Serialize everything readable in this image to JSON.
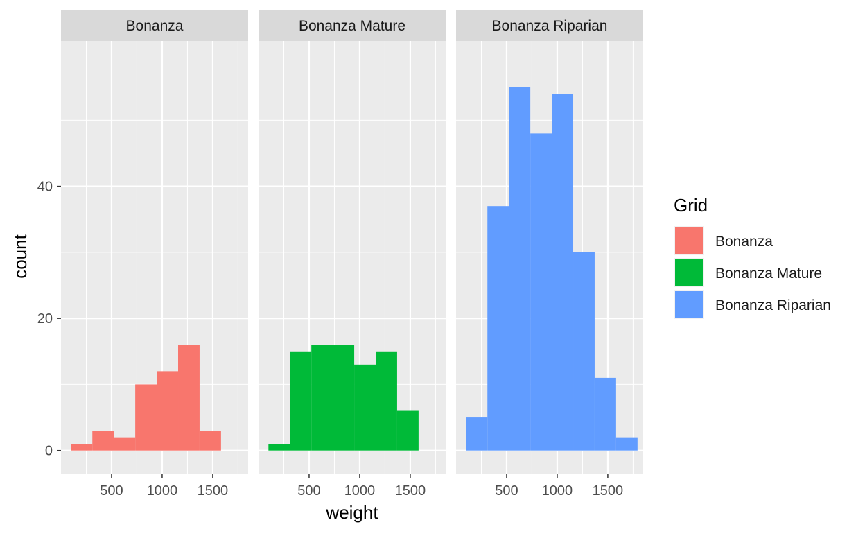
{
  "chart_data": {
    "type": "bar",
    "subtype": "faceted-histogram",
    "xlabel": "weight",
    "ylabel": "count",
    "xlim": [
      0,
      1850
    ],
    "ylim": [
      -3.6,
      62
    ],
    "x_ticks": [
      500,
      1000,
      1500
    ],
    "x_tick_labels": [
      "500",
      "1000",
      "1500"
    ],
    "y_ticks": [
      0,
      20,
      40
    ],
    "y_tick_labels": [
      "0",
      "20",
      "40"
    ],
    "bin_width": 212,
    "grid": true,
    "legend": {
      "title": "Grid",
      "position": "right",
      "entries": [
        {
          "label": "Bonanza",
          "color": "#F8766D"
        },
        {
          "label": "Bonanza Mature",
          "color": "#00BA38"
        },
        {
          "label": "Bonanza Riparian",
          "color": "#619CFF"
        }
      ]
    },
    "facets": [
      {
        "strip_label": "Bonanza",
        "color": "#F8766D",
        "bins": [
          {
            "x0": 98,
            "x1": 310,
            "count": 1
          },
          {
            "x0": 310,
            "x1": 522,
            "count": 3
          },
          {
            "x0": 522,
            "x1": 734,
            "count": 2
          },
          {
            "x0": 734,
            "x1": 946,
            "count": 10
          },
          {
            "x0": 946,
            "x1": 1158,
            "count": 12
          },
          {
            "x0": 1158,
            "x1": 1370,
            "count": 16
          },
          {
            "x0": 1370,
            "x1": 1582,
            "count": 3
          }
        ]
      },
      {
        "strip_label": "Bonanza Mature",
        "color": "#00BA38",
        "bins": [
          {
            "x0": 98,
            "x1": 310,
            "count": 1
          },
          {
            "x0": 310,
            "x1": 522,
            "count": 15
          },
          {
            "x0": 522,
            "x1": 734,
            "count": 16
          },
          {
            "x0": 734,
            "x1": 946,
            "count": 16
          },
          {
            "x0": 946,
            "x1": 1158,
            "count": 13
          },
          {
            "x0": 1158,
            "x1": 1370,
            "count": 15
          },
          {
            "x0": 1370,
            "x1": 1582,
            "count": 6
          }
        ]
      },
      {
        "strip_label": "Bonanza Riparian",
        "color": "#619CFF",
        "bins": [
          {
            "x0": 98,
            "x1": 310,
            "count": 5
          },
          {
            "x0": 310,
            "x1": 522,
            "count": 37
          },
          {
            "x0": 522,
            "x1": 734,
            "count": 55
          },
          {
            "x0": 734,
            "x1": 946,
            "count": 48
          },
          {
            "x0": 946,
            "x1": 1158,
            "count": 54
          },
          {
            "x0": 1158,
            "x1": 1370,
            "count": 30
          },
          {
            "x0": 1370,
            "x1": 1582,
            "count": 11
          },
          {
            "x0": 1582,
            "x1": 1794,
            "count": 2
          }
        ]
      }
    ]
  }
}
